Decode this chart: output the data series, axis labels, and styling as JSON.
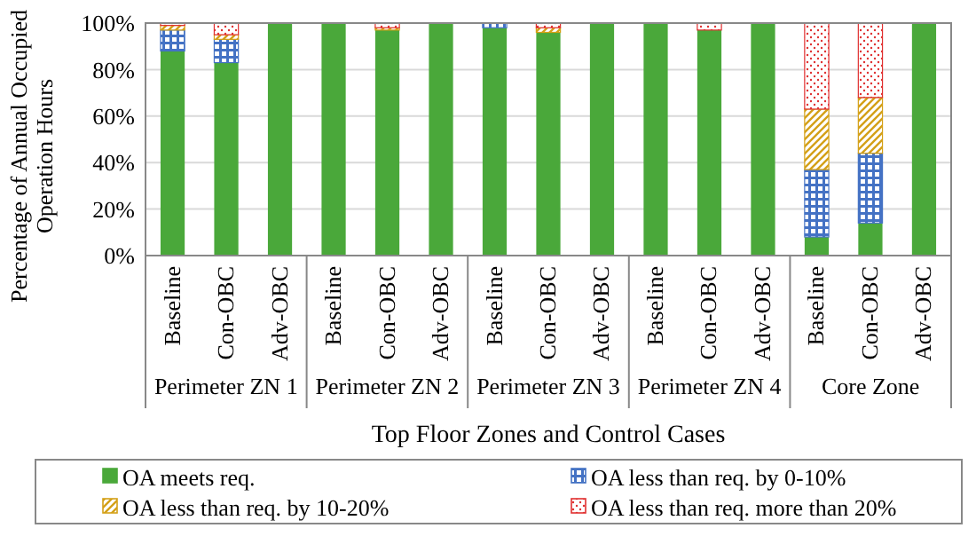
{
  "chart_data": {
    "type": "bar",
    "stacked": true,
    "xlabel": "Top Floor Zones and Control Cases",
    "ylabel": "Percentage of Annual Occupied Operation  Hours",
    "categories": [
      "Baseline",
      "Con-OBC",
      "Adv-OBC",
      "Baseline",
      "Con-OBC",
      "Adv-OBC",
      "Baseline",
      "Con-OBC",
      "Adv-OBC",
      "Baseline",
      "Con-OBC",
      "Adv-OBC",
      "Baseline",
      "Con-OBC",
      "Adv-OBC"
    ],
    "annotations": [
      "Perimeter ZN 1",
      "Perimeter ZN 2",
      "Perimeter ZN 3",
      "Perimeter ZN 4",
      "Core Zone"
    ],
    "ylim": [
      0,
      100
    ],
    "yticks": [
      {
        "value": 0,
        "label": "0%"
      },
      {
        "value": 20,
        "label": "20%"
      },
      {
        "value": 40,
        "label": "40%"
      },
      {
        "value": 60,
        "label": "60%"
      },
      {
        "value": 80,
        "label": "80%"
      },
      {
        "value": 100,
        "label": "100%"
      }
    ],
    "grid": "y",
    "legend": "bottom",
    "series": [
      {
        "name": "OA meets req.",
        "color": "#4aa83a",
        "values": [
          88,
          83,
          100,
          100,
          97,
          100,
          98,
          96,
          100,
          100,
          97,
          100,
          8,
          14,
          100
        ]
      },
      {
        "name": "OA less than req. by 0-10%",
        "color": "#4472c4",
        "values": [
          9,
          10,
          0,
          0,
          0,
          0,
          2,
          0,
          0,
          0,
          0,
          0,
          29,
          30,
          0
        ]
      },
      {
        "name": "OA less than req. by 10-20%",
        "color": "#d4a017",
        "values": [
          2,
          2,
          0,
          0,
          1,
          0,
          0,
          2,
          0,
          0,
          0,
          0,
          26,
          24,
          0
        ]
      },
      {
        "name": "OA less than req. more than 20%",
        "color": "#e03030",
        "values": [
          1,
          5,
          0,
          0,
          2,
          0,
          0,
          2,
          0,
          0,
          3,
          0,
          37,
          32,
          0
        ]
      }
    ]
  }
}
